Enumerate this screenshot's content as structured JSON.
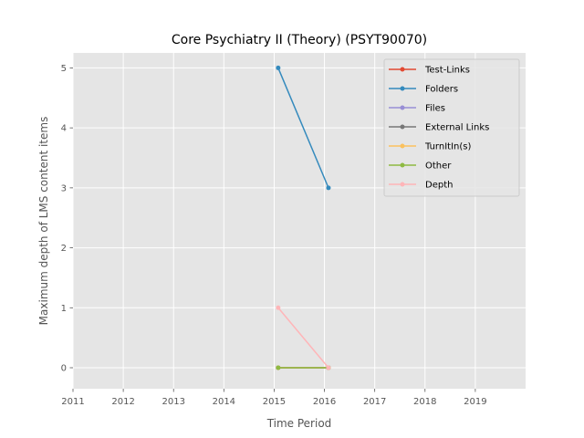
{
  "chart_data": {
    "type": "line",
    "title": "Core Psychiatry II (Theory) (PSYT90070)",
    "xlabel": "Time Period",
    "ylabel": "Maximum depth of LMS content items",
    "xlim": [
      2011,
      2020
    ],
    "ylim": [
      -0.35,
      5.25
    ],
    "xticks": [
      2011,
      2012,
      2013,
      2014,
      2015,
      2016,
      2017,
      2018,
      2019
    ],
    "yticks": [
      0,
      1,
      2,
      3,
      4,
      5
    ],
    "grid": true,
    "legend_position": "top-right",
    "x": [
      2015.08,
      2016.08
    ],
    "series": [
      {
        "name": "Test-Links",
        "color": "#e24a33",
        "values": [
          0,
          0
        ]
      },
      {
        "name": "Folders",
        "color": "#348abd",
        "values": [
          5,
          3
        ]
      },
      {
        "name": "Files",
        "color": "#988ed5",
        "values": [
          0,
          0
        ]
      },
      {
        "name": "External Links",
        "color": "#777777",
        "values": [
          0,
          0
        ]
      },
      {
        "name": "TurnItIn(s)",
        "color": "#fbc15e",
        "values": [
          0,
          0
        ]
      },
      {
        "name": "Other",
        "color": "#8eba42",
        "values": [
          0,
          0
        ]
      },
      {
        "name": "Depth",
        "color": "#ffb5b8",
        "values": [
          1,
          0
        ]
      }
    ]
  }
}
